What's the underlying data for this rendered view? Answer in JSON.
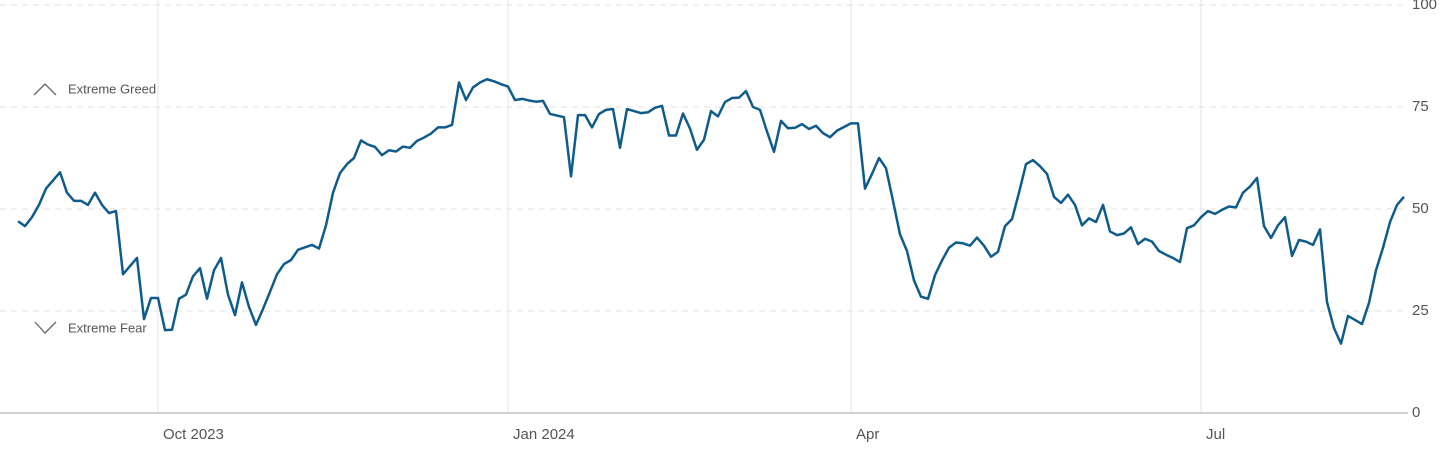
{
  "chart_data": {
    "type": "line",
    "annotations": [
      "Extreme Greed",
      "Extreme Fear"
    ],
    "categories": [
      null,
      null,
      null,
      null,
      null,
      null,
      null,
      null,
      null,
      null,
      null,
      null,
      null,
      null,
      null,
      null,
      null,
      null,
      null,
      null,
      "Oct 2023",
      null,
      null,
      null,
      null,
      null,
      null,
      null,
      null,
      null,
      null,
      null,
      null,
      null,
      null,
      null,
      null,
      null,
      null,
      null,
      null,
      null,
      null,
      null,
      null,
      null,
      null,
      null,
      null,
      null,
      null,
      null,
      null,
      null,
      null,
      null,
      null,
      null,
      null,
      null,
      null,
      null,
      null,
      null,
      null,
      null,
      null,
      null,
      null,
      null,
      "Jan 2024",
      null,
      null,
      null,
      null,
      null,
      null,
      null,
      null,
      null,
      null,
      null,
      null,
      null,
      null,
      null,
      null,
      null,
      null,
      null,
      null,
      null,
      null,
      null,
      null,
      null,
      null,
      null,
      null,
      null,
      null,
      null,
      null,
      null,
      null,
      null,
      null,
      null,
      null,
      null,
      null,
      null,
      null,
      null,
      null,
      null,
      null,
      null,
      null,
      "Apr",
      null,
      null,
      null,
      null,
      null,
      null,
      null,
      null,
      null,
      null,
      null,
      null,
      null,
      null,
      null,
      null,
      null,
      null,
      null,
      null,
      null,
      null,
      null,
      null,
      null,
      null,
      null,
      null,
      null,
      null,
      null,
      null,
      null,
      null,
      null,
      null,
      null,
      null,
      null,
      null,
      null,
      null,
      null,
      null,
      null,
      null,
      null,
      null,
      null,
      "Jul",
      null,
      null,
      null,
      null,
      null,
      null,
      null,
      null,
      null,
      null,
      null,
      null,
      null,
      null,
      null,
      null,
      null,
      null,
      null,
      null,
      null,
      null,
      null,
      null,
      null,
      null,
      null,
      null,
      null
    ],
    "series": [
      {
        "color": "#0f5c8c",
        "values": [
          47,
          45.8,
          48,
          51,
          55,
          57,
          59,
          54,
          52,
          52,
          51,
          54,
          51,
          49,
          49.5,
          34,
          36,
          38,
          23,
          28.2,
          28.2,
          20.3,
          20.4,
          28,
          29,
          33.5,
          35.5,
          28,
          35,
          38,
          29,
          24,
          32,
          26,
          21.6,
          25.5,
          29.7,
          34,
          36.5,
          37.5,
          40,
          40.6,
          41.2,
          40.3,
          46,
          54,
          58.8,
          61,
          62.5,
          66.8,
          65.8,
          65.2,
          63.2,
          64.4,
          64.1,
          65.3,
          65,
          66.7,
          67.5,
          68.5,
          70,
          70,
          70.6,
          81,
          76.7,
          79.8,
          81,
          81.8,
          81.3,
          80.6,
          80,
          76.7,
          77,
          76.6,
          76.3,
          76.5,
          73.3,
          72.9,
          72.5,
          58,
          73,
          73,
          70,
          73.3,
          74.3,
          74.5,
          65,
          74.5,
          74,
          73.5,
          73.7,
          74.8,
          75.3,
          68,
          68,
          73.4,
          69.7,
          64.5,
          67,
          74,
          72.7,
          76.2,
          77.2,
          77.3,
          78.9,
          75,
          74.3,
          69,
          64,
          71.6,
          69.8,
          69.9,
          70.8,
          69.6,
          70.4,
          68.6,
          67.6,
          69.2,
          70.1,
          71,
          71,
          55,
          58.6,
          62.5,
          60,
          52,
          43.8,
          39.7,
          32.5,
          28.5,
          28,
          33.8,
          37.4,
          40.5,
          41.8,
          41.6,
          41,
          43,
          41,
          38.3,
          39.5,
          45.8,
          47.5,
          54,
          61,
          62,
          60.5,
          58.6,
          53,
          51.5,
          53.5,
          51,
          46,
          47.7,
          46.8,
          51,
          44.5,
          43.6,
          44,
          45.5,
          41.4,
          42.7,
          42,
          39.7,
          38.8,
          38,
          37,
          45.3,
          46,
          48,
          49.5,
          48.8,
          49.8,
          50.6,
          50.4,
          54,
          55.5,
          57.6,
          45.8,
          42.9,
          46,
          48,
          38.5,
          42.4,
          42,
          41.2,
          45,
          27.2,
          20.8,
          17,
          23.8,
          22.8,
          21.8,
          27,
          35,
          40.5,
          46.8,
          51,
          53
        ]
      }
    ],
    "ylim": [
      0,
      100
    ],
    "yticks": [
      0,
      25,
      50,
      75,
      100
    ],
    "grid": true
  }
}
